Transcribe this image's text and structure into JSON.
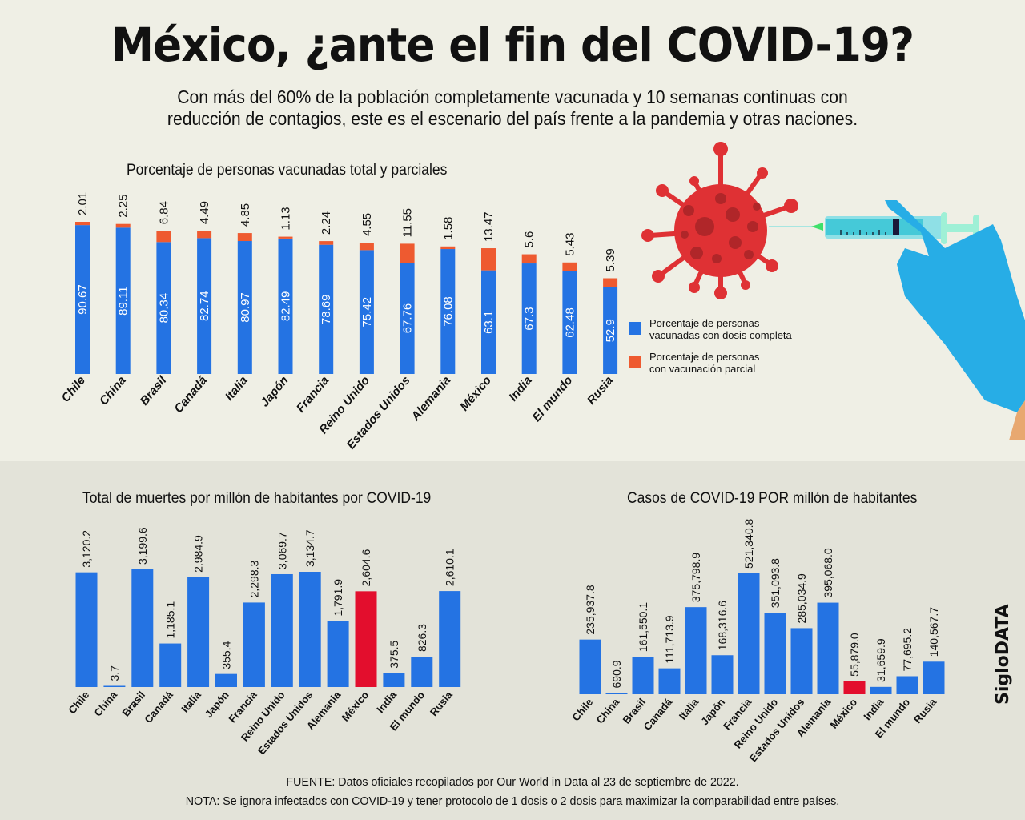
{
  "header": {
    "title": "México, ¿ante el fin del COVID-19?",
    "subtitle_line1": "Con más del 60% de la población completamente vacunada y 10 semanas continuas con",
    "subtitle_line2": "reducción de contagios, este es el escenario del país frente a la pandemia y otras naciones."
  },
  "colors": {
    "blue": "#2473e3",
    "orange": "#ee5a30",
    "red": "#e30e2d",
    "top_bg": "#efefe5",
    "bottom_bg": "#e3e3d9"
  },
  "chart_data": [
    {
      "type": "bar",
      "stacked": true,
      "title": "Porcentaje de personas vacunadas total y parciales",
      "categories": [
        "Chile",
        "China",
        "Brasil",
        "Canadá",
        "Italia",
        "Japón",
        "Francia",
        "Reino Unido",
        "Estados Unidos",
        "Alemania",
        "México",
        "India",
        "El mundo",
        "Rusia"
      ],
      "series": [
        {
          "name": "Porcentaje de personas vacunadas con dosis completa",
          "color": "#2473e3",
          "values": [
            90.67,
            89.11,
            80.34,
            82.74,
            80.97,
            82.49,
            78.69,
            75.42,
            67.76,
            76.08,
            63.1,
            67.3,
            62.48,
            52.9
          ],
          "labels": [
            "90.67",
            "89.11",
            "80.34",
            "82.74",
            "80.97",
            "82.49",
            "78.69",
            "75.42",
            "67.76",
            "76.08",
            "63.1",
            "67.3",
            "62.48",
            "52.9"
          ]
        },
        {
          "name": "Porcentaje de personas con vacunación parcial",
          "color": "#ee5a30",
          "values": [
            2.01,
            2.25,
            6.84,
            4.49,
            4.85,
            1.13,
            2.24,
            4.55,
            11.55,
            1.58,
            13.47,
            5.6,
            5.43,
            5.39
          ],
          "labels": [
            "2.01",
            "2.25",
            "6.84",
            "4.49",
            "4.85",
            "1.13",
            "2.24",
            "4.55",
            "11.55",
            "1.58",
            "13.47",
            "5.6",
            "5.43",
            "5.39"
          ]
        }
      ],
      "ylim": [
        0,
        100
      ],
      "grid": false,
      "legend_position": "right",
      "legend": [
        {
          "line1": "Porcentaje de personas",
          "line2": "vacunadas con dosis completa"
        },
        {
          "line1": "Porcentaje de personas",
          "line2": "con vacunación parcial"
        }
      ]
    },
    {
      "type": "bar",
      "title": "Total de muertes por millón de habitantes por COVID-19",
      "categories": [
        "Chile",
        "China",
        "Brasil",
        "Canadá",
        "Italia",
        "Japón",
        "Francia",
        "Reino Unido",
        "Estados Unidos",
        "Alemania",
        "México",
        "India",
        "El mundo",
        "Rusia"
      ],
      "values": [
        3120.2,
        3.7,
        3199.6,
        1185.1,
        2984.9,
        355.4,
        2298.3,
        3069.7,
        3134.7,
        1791.9,
        2604.6,
        375.5,
        826.3,
        2610.1
      ],
      "labels": [
        "3,120.2",
        "3.7",
        "3,199.6",
        "1,185.1",
        "2,984.9",
        "355.4",
        "2,298.3",
        "3,069.7",
        "3,134.7",
        "1,791.9",
        "2,604.6",
        "375.5",
        "826.3",
        "2,610.1"
      ],
      "highlight": "México",
      "ylim": [
        0,
        3200
      ],
      "grid": false
    },
    {
      "type": "bar",
      "title": "Casos de COVID-19 POR millón de habitantes",
      "categories": [
        "Chile",
        "China",
        "Brasil",
        "Canadá",
        "Italia",
        "Japón",
        "Francia",
        "Reino Unido",
        "Estados Unidos",
        "Alemania",
        "México",
        "India",
        "El mundo",
        "Rusia"
      ],
      "values": [
        235937.8,
        690.9,
        161550.1,
        111713.9,
        375798.9,
        168316.6,
        521340.8,
        351093.8,
        285034.9,
        395068.0,
        55879.0,
        31659.9,
        77695.2,
        140567.7
      ],
      "labels": [
        "235,937.8",
        "690.9",
        "161,550.1",
        "111,713.9",
        "375,798.9",
        "168,316.6",
        "521,340.8",
        "351,093.8",
        "285,034.9",
        "395,068.0",
        "55,879.0",
        "31,659.9",
        "77,695.2",
        "140,567.7"
      ],
      "highlight": "México",
      "ylim": [
        0,
        521340.8
      ],
      "grid": false
    }
  ],
  "illustration": {
    "virus": "virus-icon",
    "syringe": "syringe-icon",
    "glove_hand": "gloved-hand-icon"
  },
  "brand": "SigloDATA",
  "footer": {
    "source": "FUENTE: Datos oficiales recopilados por Our World in Data al 23 de septiembre de 2022.",
    "note": "NOTA: Se ignora infectados con COVID-19 y tener protocolo de 1 dosis o 2 dosis para maximizar la comparabilidad entre países."
  }
}
